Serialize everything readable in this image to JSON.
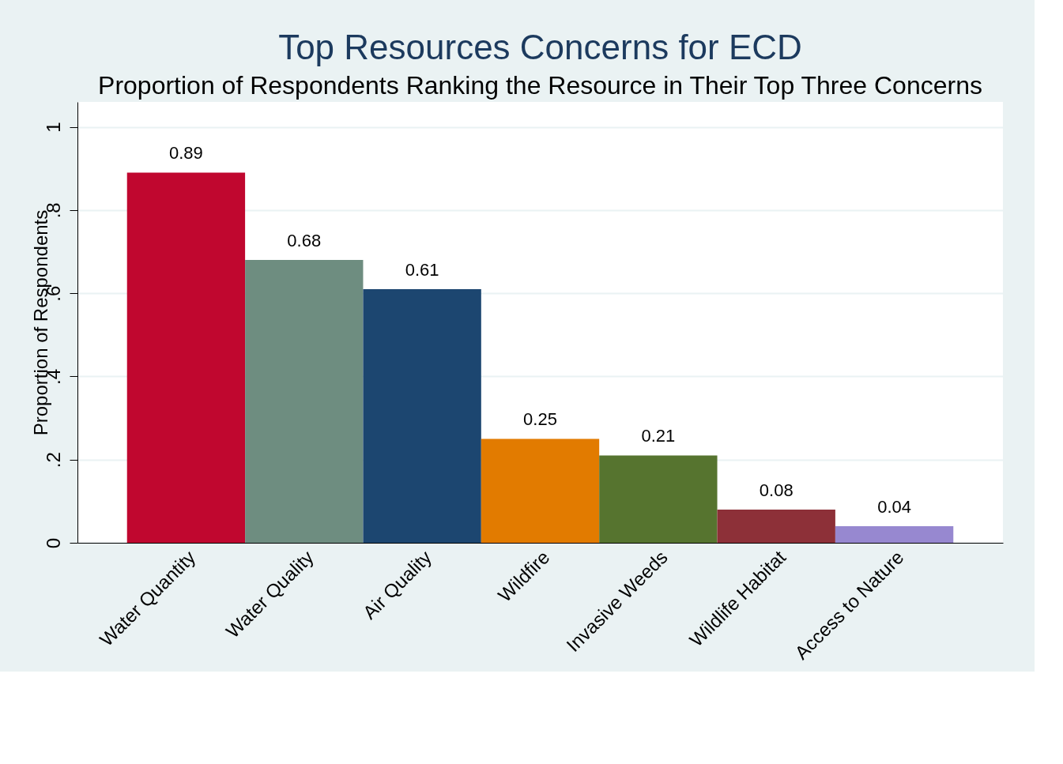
{
  "chart_data": {
    "type": "bar",
    "title": "Top Resources Concerns for ECD",
    "subtitle": "Proportion of Respondents Ranking the Resource in Their Top Three Concerns",
    "ylabel": "Proportion of Respondents",
    "categories": [
      "Water Quantity",
      "Water Quality",
      "Air Quality",
      "Wildfire",
      "Invasive Weeds",
      "Wildlife Habitat",
      "Access to Nature"
    ],
    "values": [
      0.89,
      0.68,
      0.61,
      0.25,
      0.21,
      0.08,
      0.04
    ],
    "colors": [
      "#c0072f",
      "#6e8d80",
      "#1c4670",
      "#e27b00",
      "#56742f",
      "#8d3038",
      "#9788d0"
    ],
    "ylim": [
      0,
      1.06
    ],
    "yticks": [
      0,
      {
        "value": 0.2,
        "label": ".2"
      },
      {
        "value": 0.4,
        "label": ".4"
      },
      {
        "value": 0.6,
        "label": ".6"
      },
      {
        "value": 0.8,
        "label": ".8"
      },
      1
    ],
    "grid": "y",
    "data_labels": true
  }
}
